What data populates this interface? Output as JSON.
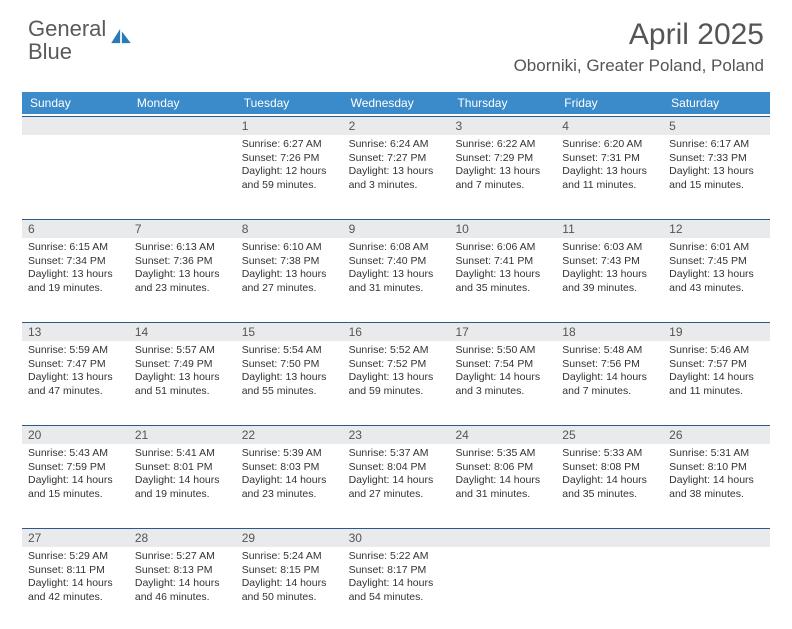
{
  "logo": {
    "text_gray": "General",
    "text_blue": "Blue"
  },
  "title": "April 2025",
  "location": "Oborniki, Greater Poland, Poland",
  "weekdays": [
    "Sunday",
    "Monday",
    "Tuesday",
    "Wednesday",
    "Thursday",
    "Friday",
    "Saturday"
  ],
  "colors": {
    "header_bar": "#3b8bca",
    "day_number_bg": "#e9eaec",
    "day_number_border": "#2a5a8a",
    "logo_gray": "#5a5a5a",
    "logo_blue": "#2a7ab8"
  },
  "weeks": [
    [
      null,
      null,
      {
        "n": "1",
        "sr": "Sunrise: 6:27 AM",
        "ss": "Sunset: 7:26 PM",
        "d1": "Daylight: 12 hours",
        "d2": "and 59 minutes."
      },
      {
        "n": "2",
        "sr": "Sunrise: 6:24 AM",
        "ss": "Sunset: 7:27 PM",
        "d1": "Daylight: 13 hours",
        "d2": "and 3 minutes."
      },
      {
        "n": "3",
        "sr": "Sunrise: 6:22 AM",
        "ss": "Sunset: 7:29 PM",
        "d1": "Daylight: 13 hours",
        "d2": "and 7 minutes."
      },
      {
        "n": "4",
        "sr": "Sunrise: 6:20 AM",
        "ss": "Sunset: 7:31 PM",
        "d1": "Daylight: 13 hours",
        "d2": "and 11 minutes."
      },
      {
        "n": "5",
        "sr": "Sunrise: 6:17 AM",
        "ss": "Sunset: 7:33 PM",
        "d1": "Daylight: 13 hours",
        "d2": "and 15 minutes."
      }
    ],
    [
      {
        "n": "6",
        "sr": "Sunrise: 6:15 AM",
        "ss": "Sunset: 7:34 PM",
        "d1": "Daylight: 13 hours",
        "d2": "and 19 minutes."
      },
      {
        "n": "7",
        "sr": "Sunrise: 6:13 AM",
        "ss": "Sunset: 7:36 PM",
        "d1": "Daylight: 13 hours",
        "d2": "and 23 minutes."
      },
      {
        "n": "8",
        "sr": "Sunrise: 6:10 AM",
        "ss": "Sunset: 7:38 PM",
        "d1": "Daylight: 13 hours",
        "d2": "and 27 minutes."
      },
      {
        "n": "9",
        "sr": "Sunrise: 6:08 AM",
        "ss": "Sunset: 7:40 PM",
        "d1": "Daylight: 13 hours",
        "d2": "and 31 minutes."
      },
      {
        "n": "10",
        "sr": "Sunrise: 6:06 AM",
        "ss": "Sunset: 7:41 PM",
        "d1": "Daylight: 13 hours",
        "d2": "and 35 minutes."
      },
      {
        "n": "11",
        "sr": "Sunrise: 6:03 AM",
        "ss": "Sunset: 7:43 PM",
        "d1": "Daylight: 13 hours",
        "d2": "and 39 minutes."
      },
      {
        "n": "12",
        "sr": "Sunrise: 6:01 AM",
        "ss": "Sunset: 7:45 PM",
        "d1": "Daylight: 13 hours",
        "d2": "and 43 minutes."
      }
    ],
    [
      {
        "n": "13",
        "sr": "Sunrise: 5:59 AM",
        "ss": "Sunset: 7:47 PM",
        "d1": "Daylight: 13 hours",
        "d2": "and 47 minutes."
      },
      {
        "n": "14",
        "sr": "Sunrise: 5:57 AM",
        "ss": "Sunset: 7:49 PM",
        "d1": "Daylight: 13 hours",
        "d2": "and 51 minutes."
      },
      {
        "n": "15",
        "sr": "Sunrise: 5:54 AM",
        "ss": "Sunset: 7:50 PM",
        "d1": "Daylight: 13 hours",
        "d2": "and 55 minutes."
      },
      {
        "n": "16",
        "sr": "Sunrise: 5:52 AM",
        "ss": "Sunset: 7:52 PM",
        "d1": "Daylight: 13 hours",
        "d2": "and 59 minutes."
      },
      {
        "n": "17",
        "sr": "Sunrise: 5:50 AM",
        "ss": "Sunset: 7:54 PM",
        "d1": "Daylight: 14 hours",
        "d2": "and 3 minutes."
      },
      {
        "n": "18",
        "sr": "Sunrise: 5:48 AM",
        "ss": "Sunset: 7:56 PM",
        "d1": "Daylight: 14 hours",
        "d2": "and 7 minutes."
      },
      {
        "n": "19",
        "sr": "Sunrise: 5:46 AM",
        "ss": "Sunset: 7:57 PM",
        "d1": "Daylight: 14 hours",
        "d2": "and 11 minutes."
      }
    ],
    [
      {
        "n": "20",
        "sr": "Sunrise: 5:43 AM",
        "ss": "Sunset: 7:59 PM",
        "d1": "Daylight: 14 hours",
        "d2": "and 15 minutes."
      },
      {
        "n": "21",
        "sr": "Sunrise: 5:41 AM",
        "ss": "Sunset: 8:01 PM",
        "d1": "Daylight: 14 hours",
        "d2": "and 19 minutes."
      },
      {
        "n": "22",
        "sr": "Sunrise: 5:39 AM",
        "ss": "Sunset: 8:03 PM",
        "d1": "Daylight: 14 hours",
        "d2": "and 23 minutes."
      },
      {
        "n": "23",
        "sr": "Sunrise: 5:37 AM",
        "ss": "Sunset: 8:04 PM",
        "d1": "Daylight: 14 hours",
        "d2": "and 27 minutes."
      },
      {
        "n": "24",
        "sr": "Sunrise: 5:35 AM",
        "ss": "Sunset: 8:06 PM",
        "d1": "Daylight: 14 hours",
        "d2": "and 31 minutes."
      },
      {
        "n": "25",
        "sr": "Sunrise: 5:33 AM",
        "ss": "Sunset: 8:08 PM",
        "d1": "Daylight: 14 hours",
        "d2": "and 35 minutes."
      },
      {
        "n": "26",
        "sr": "Sunrise: 5:31 AM",
        "ss": "Sunset: 8:10 PM",
        "d1": "Daylight: 14 hours",
        "d2": "and 38 minutes."
      }
    ],
    [
      {
        "n": "27",
        "sr": "Sunrise: 5:29 AM",
        "ss": "Sunset: 8:11 PM",
        "d1": "Daylight: 14 hours",
        "d2": "and 42 minutes."
      },
      {
        "n": "28",
        "sr": "Sunrise: 5:27 AM",
        "ss": "Sunset: 8:13 PM",
        "d1": "Daylight: 14 hours",
        "d2": "and 46 minutes."
      },
      {
        "n": "29",
        "sr": "Sunrise: 5:24 AM",
        "ss": "Sunset: 8:15 PM",
        "d1": "Daylight: 14 hours",
        "d2": "and 50 minutes."
      },
      {
        "n": "30",
        "sr": "Sunrise: 5:22 AM",
        "ss": "Sunset: 8:17 PM",
        "d1": "Daylight: 14 hours",
        "d2": "and 54 minutes."
      },
      null,
      null,
      null
    ]
  ]
}
